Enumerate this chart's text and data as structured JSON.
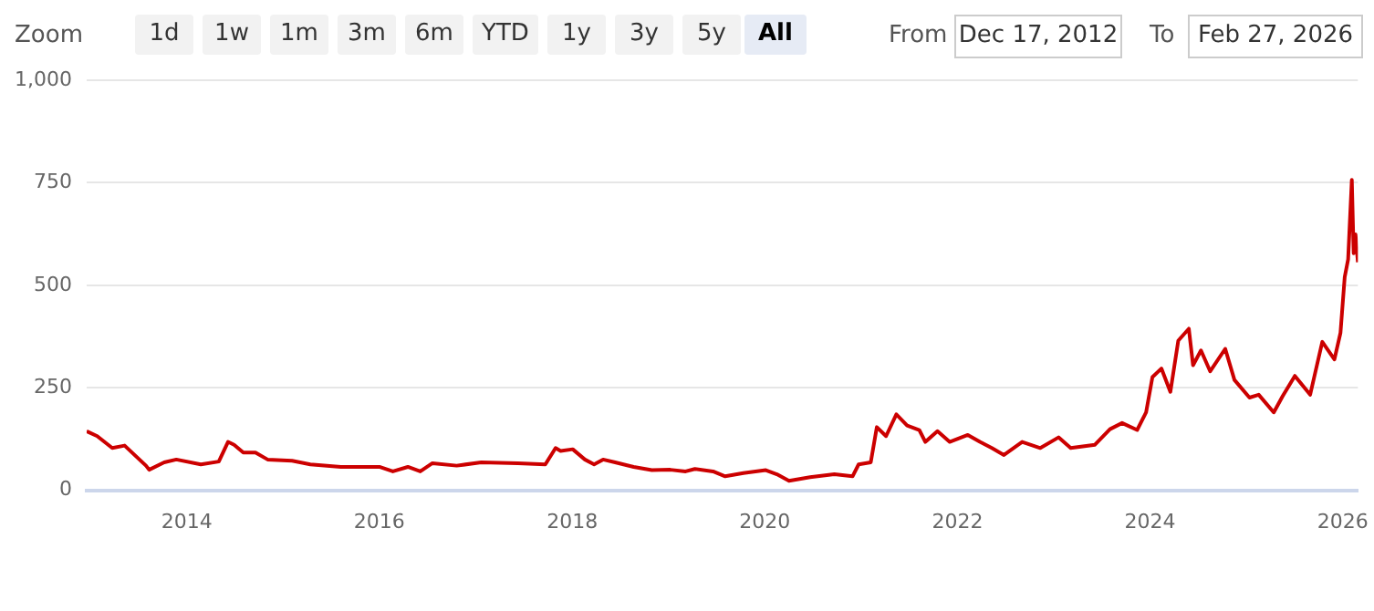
{
  "chart_data": {
    "type": "line",
    "annotations": [
      "Zoom",
      "1d",
      "1w",
      "1m",
      "3m",
      "6m",
      "YTD",
      "1y",
      "3y",
      "5y",
      "All",
      "From",
      "Dec 17, 2012",
      "To",
      "Feb 27, 2026"
    ],
    "xlim": [
      "2012-12-17",
      "2026-02-27"
    ],
    "xticks": [
      "2014",
      "2016",
      "2018",
      "2020",
      "2022",
      "2024",
      "2026"
    ],
    "ylim": [
      0,
      1000
    ],
    "yticks": [
      0,
      250,
      500,
      750,
      {
        "value": 1000,
        "label": "1,000"
      }
    ],
    "grid": "y",
    "legend": false,
    "marker": "none",
    "line_style": "solid",
    "series": [
      {
        "color": "#cc0000",
        "x": [
          "2012-12-17",
          "2013-01-26",
          "2013-03-24",
          "2013-05-10",
          "2013-07-30",
          "2013-08-11",
          "2013-10-07",
          "2013-11-22",
          "2014-02-23",
          "2014-05-02",
          "2014-06-06",
          "2014-06-29",
          "2014-08-03",
          "2014-09-18",
          "2014-11-03",
          "2015-02-04",
          "2015-04-14",
          "2015-08-08",
          "2015-11-08",
          "2016-01-01",
          "2016-02-21",
          "2016-04-18",
          "2016-06-04",
          "2016-07-20",
          "2016-10-20",
          "2017-01-21",
          "2017-06-09",
          "2017-09-21",
          "2017-10-30",
          "2017-11-18",
          "2018-01-03",
          "2018-02-18",
          "2018-03-25",
          "2018-04-28",
          "2018-06-13",
          "2018-08-22",
          "2018-10-30",
          "2019-01-08",
          "2019-03-07",
          "2019-04-11",
          "2019-06-19",
          "2019-08-04",
          "2019-10-12",
          "2020-01-05",
          "2020-02-16",
          "2020-04-02",
          "2020-06-21",
          "2020-09-21",
          "2020-11-29",
          "2020-12-22",
          "2021-02-06",
          "2021-03-01",
          "2021-04-05",
          "2021-05-14",
          "2021-06-24",
          "2021-08-09",
          "2021-09-01",
          "2021-10-17",
          "2021-12-02",
          "2022-02-09",
          "2022-03-27",
          "2022-05-11",
          "2022-06-26",
          "2022-09-03",
          "2022-11-11",
          "2023-01-19",
          "2023-03-06",
          "2023-06-06",
          "2023-08-02",
          "2023-09-17",
          "2023-11-13",
          "2023-12-17",
          "2024-01-10",
          "2024-02-13",
          "2024-03-18",
          "2024-04-17",
          "2024-05-27",
          "2024-06-12",
          "2024-07-12",
          "2024-08-16",
          "2024-10-12",
          "2024-11-16",
          "2025-01-12",
          "2025-02-16",
          "2025-04-14",
          "2025-05-18",
          "2025-07-03",
          "2025-08-30",
          "2025-10-15",
          "2025-11-30",
          "2025-12-23",
          "2026-01-08",
          "2026-01-21",
          "2026-02-04",
          "2026-02-11",
          "2026-02-18",
          "2026-02-27"
        ],
        "values": [
          144,
          132,
          103,
          109,
          60,
          50,
          68,
          75,
          63,
          70,
          118,
          111,
          92,
          92,
          75,
          72,
          63,
          57,
          57,
          57,
          46,
          57,
          46,
          66,
          60,
          68,
          66,
          63,
          103,
          96,
          100,
          75,
          63,
          75,
          68,
          57,
          49,
          50,
          46,
          52,
          46,
          34,
          42,
          49,
          39,
          23,
          32,
          39,
          34,
          63,
          68,
          154,
          132,
          185,
          158,
          147,
          118,
          144,
          118,
          135,
          118,
          103,
          86,
          118,
          103,
          129,
          103,
          111,
          149,
          164,
          147,
          190,
          276,
          297,
          240,
          365,
          394,
          305,
          341,
          290,
          345,
          269,
          226,
          233,
          190,
          230,
          279,
          233,
          362,
          319,
          384,
          520,
          563,
          757,
          578,
          624,
          556
        ]
      }
    ]
  }
}
